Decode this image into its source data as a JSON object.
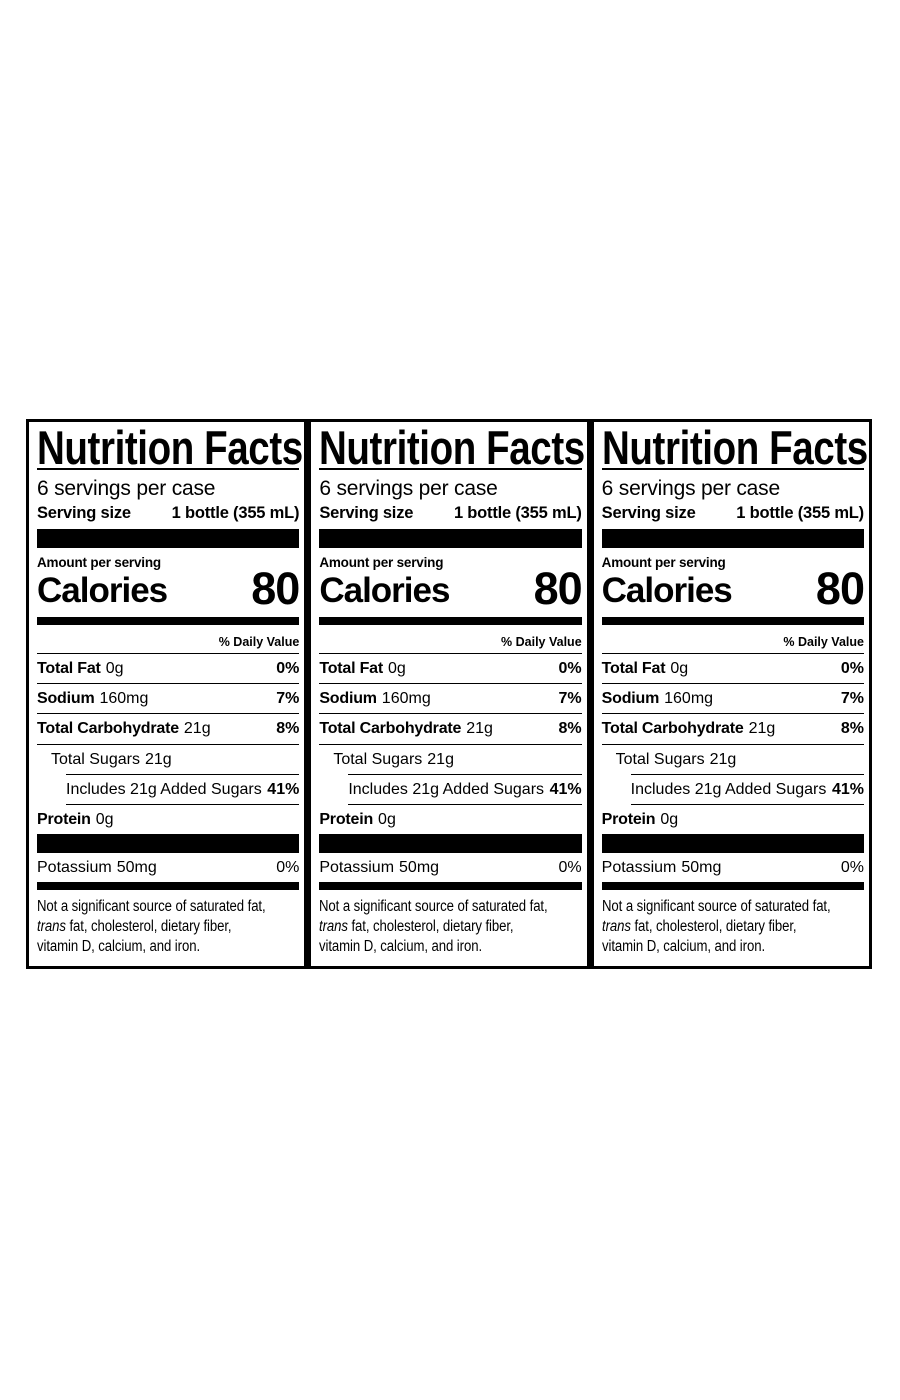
{
  "page": {
    "background_color": "#ffffff",
    "ink_color": "#000000"
  },
  "label": {
    "panel_count": 3,
    "title": "Nutrition Facts",
    "servings_per_case": "6 servings per case",
    "serving_size": {
      "label": "Serving size",
      "value": "1 bottle (355 mL)"
    },
    "amount_per_serving": "Amount per serving",
    "calories": {
      "label": "Calories",
      "value": "80"
    },
    "daily_value_header": "% Daily Value",
    "nutrients": {
      "total_fat": {
        "name": "Total Fat",
        "amount": "0g",
        "daily_value": "0%"
      },
      "sodium": {
        "name": "Sodium",
        "amount": "160mg",
        "daily_value": "7%"
      },
      "total_carbohydrate": {
        "name": "Total Carbohydrate",
        "amount": "21g",
        "daily_value": "8%"
      },
      "total_sugars": {
        "name": "Total Sugars",
        "amount": "21g"
      },
      "added_sugars": {
        "name": "Includes 21g Added Sugars",
        "daily_value": "41%"
      },
      "protein": {
        "name": "Protein",
        "amount": "0g"
      },
      "potassium": {
        "name": "Potassium",
        "amount": "50mg",
        "daily_value": "0%"
      }
    },
    "footnote": {
      "line1": "Not a significant source of saturated fat,",
      "line2_italic": "trans",
      "line2_rest": " fat, cholesterol, dietary fiber,",
      "line3": "vitamin D, calcium, and iron."
    }
  }
}
